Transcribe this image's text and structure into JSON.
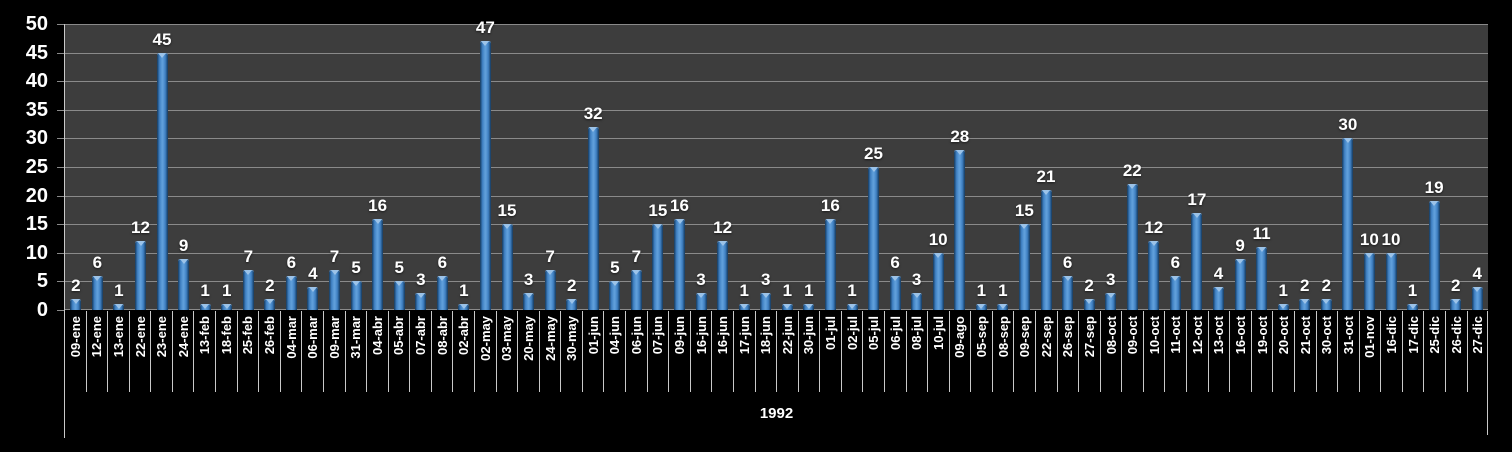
{
  "chart_data": {
    "type": "bar",
    "title": "",
    "xlabel": "",
    "ylabel": "",
    "group_label": "1992",
    "ylim": [
      0,
      50
    ],
    "y_ticks": [
      0,
      5,
      10,
      15,
      20,
      25,
      30,
      35,
      40,
      45,
      50
    ],
    "grid": true,
    "legend": false,
    "value_labels": "outside-end",
    "category_label_rotation": "90-degrees-bottom-to-top",
    "categories": [
      "09-ene",
      "12-ene",
      "13-ene",
      "22-ene",
      "23-ene",
      "24-ene",
      "13-feb",
      "18-feb",
      "25-feb",
      "26-feb",
      "04-mar",
      "06-mar",
      "09-mar",
      "31-mar",
      "04-abr",
      "05-abr",
      "07-abr",
      "08-abr",
      "02-abr",
      "02-may",
      "03-may",
      "20-may",
      "24-may",
      "30-may",
      "01-jun",
      "04-jun",
      "06-jun",
      "07-jun",
      "09-jun",
      "16-jun",
      "16-jun",
      "17-jun",
      "18-jun",
      "22-jun",
      "30-jun",
      "01-jul",
      "02-jul",
      "05-jul",
      "06-jul",
      "08-jul",
      "10-jul",
      "09-ago",
      "05-sep",
      "08-sep",
      "09-sep",
      "22-sep",
      "26-sep",
      "27-sep",
      "08-oct",
      "09-oct",
      "10-oct",
      "11-oct",
      "12-oct",
      "13-oct",
      "16-oct",
      "19-oct",
      "20-oct",
      "21-oct",
      "30-oct",
      "31-oct",
      "01-nov",
      "16-dic",
      "17-dic",
      "25-dic",
      "26-dic",
      "27-dic"
    ],
    "values": [
      2,
      6,
      1,
      12,
      45,
      9,
      1,
      1,
      7,
      2,
      6,
      4,
      7,
      5,
      16,
      5,
      3,
      6,
      1,
      47,
      15,
      3,
      7,
      2,
      32,
      5,
      7,
      15,
      16,
      3,
      12,
      1,
      3,
      1,
      1,
      16,
      1,
      25,
      6,
      3,
      10,
      28,
      1,
      1,
      15,
      21,
      6,
      2,
      3,
      22,
      12,
      6,
      17,
      4,
      9,
      11,
      1,
      2,
      2,
      30,
      10,
      10,
      1,
      19,
      2,
      4
    ],
    "colors": {
      "background": "#000000",
      "plot_background": "#3d3d3d",
      "gridline": "#8a8a8a",
      "axis_line": "#c9c9c9",
      "text": "#ffffff",
      "bar_dark_edge": "#15395c",
      "bar_main": "#3e7fc1",
      "bar_light_center": "#5f9eda",
      "bar_cap_highlight": "#9cc3e8"
    }
  }
}
